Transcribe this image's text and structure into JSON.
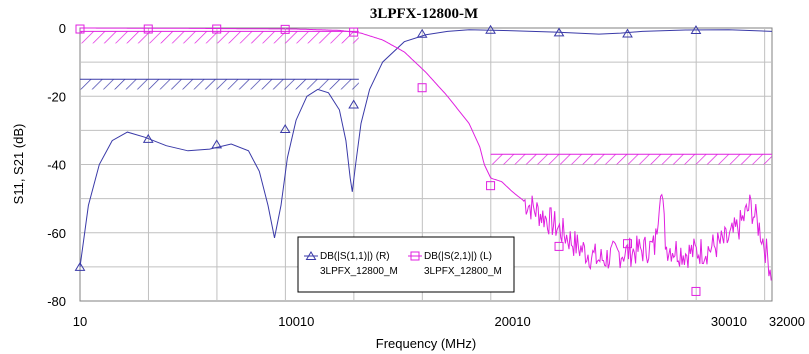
{
  "chart_data": {
    "type": "line",
    "title": "3LPFX-12800-M",
    "xlabel": "Frequency (MHz)",
    "ylabel": "S11, S21 (dB)",
    "xlim": [
      10,
      32000
    ],
    "ylim": [
      -80,
      0
    ],
    "xticks": [
      {
        "value": 10,
        "label": "10"
      },
      {
        "value": 10010,
        "label": "10010"
      },
      {
        "value": 20010,
        "label": "20010"
      },
      {
        "value": 30010,
        "label": "30010"
      },
      {
        "value": 32000,
        "label": "32000"
      }
    ],
    "yticks": [
      0,
      -20,
      -40,
      -60,
      -80
    ],
    "grid": true,
    "legend_position": "bottom-center",
    "colors": {
      "s11": "#3a3aa8",
      "s21": "#e020e0",
      "grid": "#c0c0c0"
    },
    "series": [
      {
        "key": "s11",
        "name": "DB(|S(1,1)|) (R)",
        "subname": "3LPFX_12800_M",
        "marker": "triangle",
        "points": [
          [
            10,
            -70
          ],
          [
            400,
            -52
          ],
          [
            900,
            -40
          ],
          [
            1500,
            -33
          ],
          [
            2200,
            -30.5
          ],
          [
            3000,
            -32
          ],
          [
            4000,
            -34.5
          ],
          [
            5000,
            -36
          ],
          [
            6000,
            -35.5
          ],
          [
            7000,
            -34
          ],
          [
            7800,
            -36
          ],
          [
            8300,
            -42
          ],
          [
            8700,
            -52
          ],
          [
            9000,
            -61.5
          ],
          [
            9300,
            -52
          ],
          [
            9600,
            -38
          ],
          [
            10000,
            -27
          ],
          [
            10500,
            -20
          ],
          [
            11000,
            -18
          ],
          [
            11500,
            -19
          ],
          [
            12000,
            -24
          ],
          [
            12300,
            -33
          ],
          [
            12500,
            -44
          ],
          [
            12600,
            -48
          ],
          [
            12750,
            -40
          ],
          [
            13000,
            -28
          ],
          [
            13400,
            -18
          ],
          [
            14000,
            -10
          ],
          [
            15000,
            -4
          ],
          [
            16000,
            -2
          ],
          [
            17000,
            -1
          ],
          [
            18000,
            -0.5
          ],
          [
            20000,
            -0.8
          ],
          [
            22000,
            -1.2
          ],
          [
            24000,
            -1.8
          ],
          [
            25000,
            -1.5
          ],
          [
            26000,
            -1.0
          ],
          [
            28000,
            -0.6
          ],
          [
            30000,
            -0.5
          ],
          [
            32000,
            -1.0
          ]
        ],
        "marker_points": [
          [
            10,
            -70
          ],
          [
            3165,
            -32.5
          ],
          [
            6330,
            -34.1
          ],
          [
            9495,
            -29.6
          ],
          [
            12660,
            -22.4
          ],
          [
            15825,
            -1.7
          ],
          [
            18990,
            -0.5
          ],
          [
            22155,
            -1.3
          ],
          [
            25320,
            -1.6
          ],
          [
            28485,
            -0.6
          ]
        ]
      },
      {
        "key": "s21",
        "name": "DB(|S(2,1)|) (L)",
        "subname": "3LPFX_12800_M",
        "marker": "square",
        "points": [
          [
            10,
            0
          ],
          [
            5000,
            -0.1
          ],
          [
            10000,
            -0.3
          ],
          [
            12000,
            -0.7
          ],
          [
            13000,
            -1.5
          ],
          [
            14000,
            -3.5
          ],
          [
            15000,
            -7
          ],
          [
            16000,
            -13
          ],
          [
            17000,
            -20
          ],
          [
            18000,
            -28
          ],
          [
            18500,
            -35
          ],
          [
            18700,
            -40
          ],
          [
            19000,
            -44
          ],
          [
            19500,
            -45
          ],
          [
            20000,
            -48
          ],
          [
            21000,
            -53
          ],
          [
            22000,
            -58
          ],
          [
            23000,
            -64
          ],
          [
            24000,
            -68
          ],
          [
            25000,
            -66
          ],
          [
            26000,
            -65
          ],
          [
            26600,
            -64
          ],
          [
            26850,
            -45
          ],
          [
            27100,
            -64
          ],
          [
            28000,
            -66
          ],
          [
            29000,
            -65
          ],
          [
            30000,
            -62
          ],
          [
            30500,
            -58
          ],
          [
            31000,
            -52
          ],
          [
            31500,
            -60
          ],
          [
            32000,
            -72
          ]
        ],
        "noise_start": 20500,
        "marker_points": [
          [
            10,
            -0.3
          ],
          [
            3165,
            -0.3
          ],
          [
            6330,
            -0.3
          ],
          [
            9495,
            -0.4
          ],
          [
            12660,
            -1.2
          ],
          [
            15825,
            -17.5
          ],
          [
            18990,
            -46.2
          ],
          [
            22155,
            -64
          ],
          [
            25320,
            -63.2
          ],
          [
            28485,
            -77.2
          ]
        ]
      }
    ],
    "masks": [
      {
        "x": [
          10,
          12900
        ],
        "y": [
          -1,
          -4.5
        ],
        "color": "#e020e0"
      },
      {
        "x": [
          10,
          12900
        ],
        "y": [
          -15,
          -18
        ],
        "color": "#3a3aa8"
      },
      {
        "x": [
          19000,
          32000
        ],
        "y": [
          -37,
          -40
        ],
        "color": "#e020e0"
      }
    ]
  }
}
